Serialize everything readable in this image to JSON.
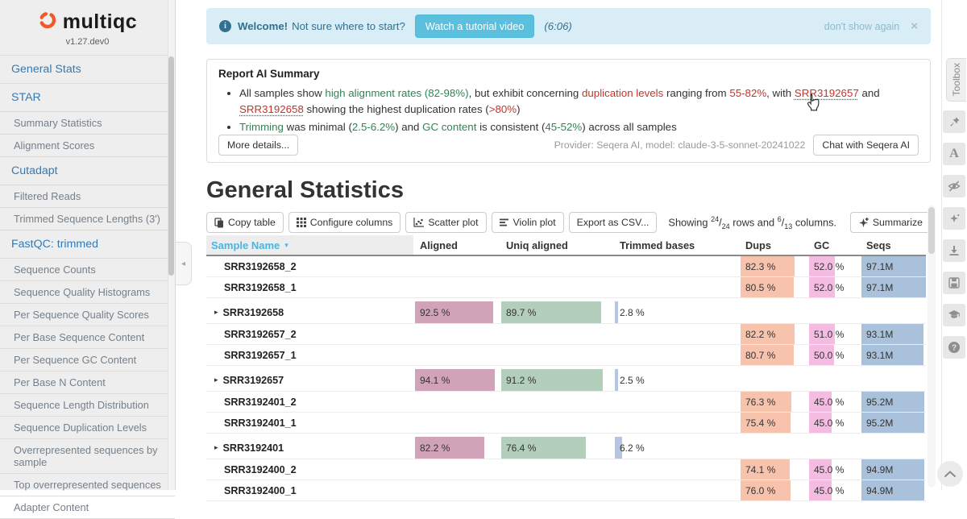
{
  "sidebar": {
    "logo_text": "multiqc",
    "version": "v1.27.dev0",
    "items": [
      {
        "label": "General Stats",
        "type": "top"
      },
      {
        "label": "STAR",
        "type": "top"
      },
      {
        "label": "Summary Statistics",
        "type": "sub"
      },
      {
        "label": "Alignment Scores",
        "type": "sub"
      },
      {
        "label": "Cutadapt",
        "type": "top"
      },
      {
        "label": "Filtered Reads",
        "type": "sub"
      },
      {
        "label": "Trimmed Sequence Lengths (3')",
        "type": "sub"
      },
      {
        "label": "FastQC: trimmed",
        "type": "top"
      },
      {
        "label": "Sequence Counts",
        "type": "sub"
      },
      {
        "label": "Sequence Quality Histograms",
        "type": "sub"
      },
      {
        "label": "Per Sequence Quality Scores",
        "type": "sub"
      },
      {
        "label": "Per Base Sequence Content",
        "type": "sub"
      },
      {
        "label": "Per Sequence GC Content",
        "type": "sub"
      },
      {
        "label": "Per Base N Content",
        "type": "sub"
      },
      {
        "label": "Sequence Length Distribution",
        "type": "sub"
      },
      {
        "label": "Sequence Duplication Levels",
        "type": "sub"
      },
      {
        "label": "Overrepresented sequences by sample",
        "type": "sub"
      },
      {
        "label": "Top overrepresented sequences",
        "type": "sub"
      },
      {
        "label": "Adapter Content",
        "type": "sub"
      }
    ]
  },
  "welcome": {
    "title": "Welcome!",
    "question": "Not sure where to start?",
    "button": "Watch a tutorial video",
    "duration": "(6:06)",
    "dismiss": "don't show again",
    "close": "×"
  },
  "ai_summary": {
    "title": "Report AI Summary",
    "bullets": [
      [
        {
          "t": "All samples show "
        },
        {
          "t": "high alignment rates (82-98%)",
          "c": "good"
        },
        {
          "t": ", but exhibit concerning "
        },
        {
          "t": "duplication levels",
          "c": "bad"
        },
        {
          "t": " ranging from "
        },
        {
          "t": "55-82%",
          "c": "bad"
        },
        {
          "t": ", with "
        },
        {
          "t": "SRR3192657",
          "c": "link"
        },
        {
          "t": " and "
        },
        {
          "t": "SRR3192658",
          "c": "link"
        },
        {
          "t": " showing the highest duplication rates ("
        },
        {
          "t": ">80%",
          "c": "bad"
        },
        {
          "t": ")"
        }
      ],
      [
        {
          "t": "Trimming",
          "c": "good"
        },
        {
          "t": " was minimal ("
        },
        {
          "t": "2.5-6.2%",
          "c": "good"
        },
        {
          "t": ") and "
        },
        {
          "t": "GC content",
          "c": "good"
        },
        {
          "t": " is consistent ("
        },
        {
          "t": "45-52%",
          "c": "good"
        },
        {
          "t": ") across all samples"
        }
      ]
    ],
    "more_details": "More details...",
    "provider": "Provider: Seqera AI, model: claude-3-5-sonnet-20241022",
    "chat": "Chat with Seqera AI"
  },
  "general_stats": {
    "title": "General Statistics"
  },
  "toolbar": {
    "buttons": [
      "Copy table",
      "Configure columns",
      "Scatter plot",
      "Violin plot",
      "Export as CSV..."
    ],
    "showing": {
      "prefix": "Showing",
      "rows_num": "24",
      "rows_den": "24",
      "mid": "rows and",
      "cols_num": "6",
      "cols_den": "13",
      "suffix": "columns."
    },
    "summarize": "Summarize"
  },
  "table": {
    "columns": [
      "Sample Name",
      "Aligned",
      "Uniq aligned",
      "Trimmed bases",
      "Dups",
      "GC",
      "Seqs"
    ],
    "rows": [
      {
        "name": "SRR3192658_2",
        "parent": false,
        "dups": "82.3 %",
        "dups_w": 82.3,
        "gc": "52.0 %",
        "gc_w": 52,
        "seqs": "97.1M",
        "seqs_w": 100
      },
      {
        "name": "SRR3192658_1",
        "parent": false,
        "dups": "80.5 %",
        "dups_w": 80.5,
        "gc": "52.0 %",
        "gc_w": 52,
        "seqs": "97.1M",
        "seqs_w": 100
      },
      {
        "name": "SRR3192658",
        "parent": true,
        "aligned": "92.5 %",
        "aligned_w": 92.5,
        "uniq": "89.7 %",
        "uniq_w": 89.7,
        "trimmed": "2.8 %",
        "trimmed_w": 2.8
      },
      {
        "name": "SRR3192657_2",
        "parent": false,
        "dups": "82.2 %",
        "dups_w": 82.2,
        "gc": "51.0 %",
        "gc_w": 51,
        "seqs": "93.1M",
        "seqs_w": 95.9
      },
      {
        "name": "SRR3192657_1",
        "parent": false,
        "dups": "80.7 %",
        "dups_w": 80.7,
        "gc": "50.0 %",
        "gc_w": 50,
        "seqs": "93.1M",
        "seqs_w": 95.9
      },
      {
        "name": "SRR3192657",
        "parent": true,
        "aligned": "94.1 %",
        "aligned_w": 94.1,
        "uniq": "91.2 %",
        "uniq_w": 91.2,
        "trimmed": "2.5 %",
        "trimmed_w": 2.5
      },
      {
        "name": "SRR3192401_2",
        "parent": false,
        "dups": "76.3 %",
        "dups_w": 76.3,
        "gc": "45.0 %",
        "gc_w": 45,
        "seqs": "95.2M",
        "seqs_w": 98
      },
      {
        "name": "SRR3192401_1",
        "parent": false,
        "dups": "75.4 %",
        "dups_w": 75.4,
        "gc": "45.0 %",
        "gc_w": 45,
        "seqs": "95.2M",
        "seqs_w": 98
      },
      {
        "name": "SRR3192401",
        "parent": true,
        "aligned": "82.2 %",
        "aligned_w": 82.2,
        "uniq": "76.4 %",
        "uniq_w": 76.4,
        "trimmed": "6.2 %",
        "trimmed_w": 6.2
      },
      {
        "name": "SRR3192400_2",
        "parent": false,
        "dups": "74.1 %",
        "dups_w": 74.1,
        "gc": "45.0 %",
        "gc_w": 45,
        "seqs": "94.9M",
        "seqs_w": 97.7
      },
      {
        "name": "SRR3192400_1",
        "parent": false,
        "dups": "76.0 %",
        "dups_w": 76,
        "gc": "45.0 %",
        "gc_w": 45,
        "seqs": "94.9M",
        "seqs_w": 97.7
      }
    ]
  },
  "toolbox": {
    "label": "Toolbox",
    "icons": [
      "pin",
      "font",
      "eye-slash",
      "sparkles",
      "download",
      "save",
      "graduation-cap",
      "help"
    ]
  },
  "colors": {
    "aligned_bar": "#d1a3b9",
    "uniq_bar": "#b3ceba",
    "trimmed_bar": "#b7c5e3",
    "dups_bar": "#f8c3ad",
    "gc_bar": "#f5bce1",
    "seqs_bar": "#a9c1da",
    "accent_blue": "#45b7e0",
    "link_blue": "#337ab7",
    "good_green": "#2d8653",
    "bad_red": "#c4342b",
    "banner_bg": "#d9edf7",
    "banner_text": "#31708f",
    "info_button_bg": "#5bc0de",
    "logo_orange": "#ef5a2a"
  }
}
